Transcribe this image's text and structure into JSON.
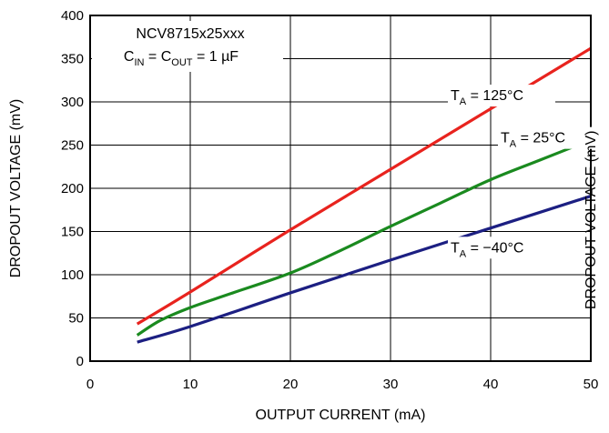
{
  "chart_data": {
    "type": "line",
    "title": "",
    "xlabel": "OUTPUT CURRENT (mA)",
    "ylabel": "DROPOUT VOLTAGE (mV)",
    "ylabel_right_partial": "DROPOUT VOLTAGE (mV)",
    "xlim": [
      0,
      50
    ],
    "ylim": [
      0,
      400
    ],
    "x_ticks": [
      0,
      10,
      20,
      30,
      40,
      50
    ],
    "y_ticks": [
      0,
      50,
      100,
      150,
      200,
      250,
      300,
      350,
      400
    ],
    "grid": true,
    "annotation_lines": [
      {
        "main": "NCV8715x25xxx"
      },
      {
        "parts": [
          {
            "t": "C",
            "sub": false
          },
          {
            "t": "IN",
            "sub": true
          },
          {
            "t": " = C",
            "sub": false
          },
          {
            "t": "OUT",
            "sub": true
          },
          {
            "t": " = 1 µF",
            "sub": false
          }
        ]
      }
    ],
    "series": [
      {
        "name": "TA = 125°C",
        "label_main": "T",
        "label_sub": "A",
        "label_rest": " = 125°C",
        "color": "#e8231e",
        "x": [
          4.7,
          10,
          20,
          30,
          40,
          50
        ],
        "values": [
          43,
          80,
          152,
          222,
          292,
          362
        ]
      },
      {
        "name": "TA = 25°C",
        "label_main": "T",
        "label_sub": "A",
        "label_rest": " = 25°C",
        "color": "#1a8a1f",
        "x": [
          4.7,
          7,
          10,
          14,
          20,
          25,
          30,
          35,
          40,
          45,
          50
        ],
        "values": [
          30,
          47,
          62,
          78,
          102,
          128,
          156,
          183,
          210,
          233,
          256
        ]
      },
      {
        "name": "TA = −40°C",
        "label_main": "T",
        "label_sub": "A",
        "label_rest": " = −40°C",
        "color": "#1c1f82",
        "x": [
          4.7,
          10,
          20,
          30,
          40,
          50
        ],
        "values": [
          22,
          40,
          79,
          117,
          154,
          191
        ]
      }
    ]
  }
}
